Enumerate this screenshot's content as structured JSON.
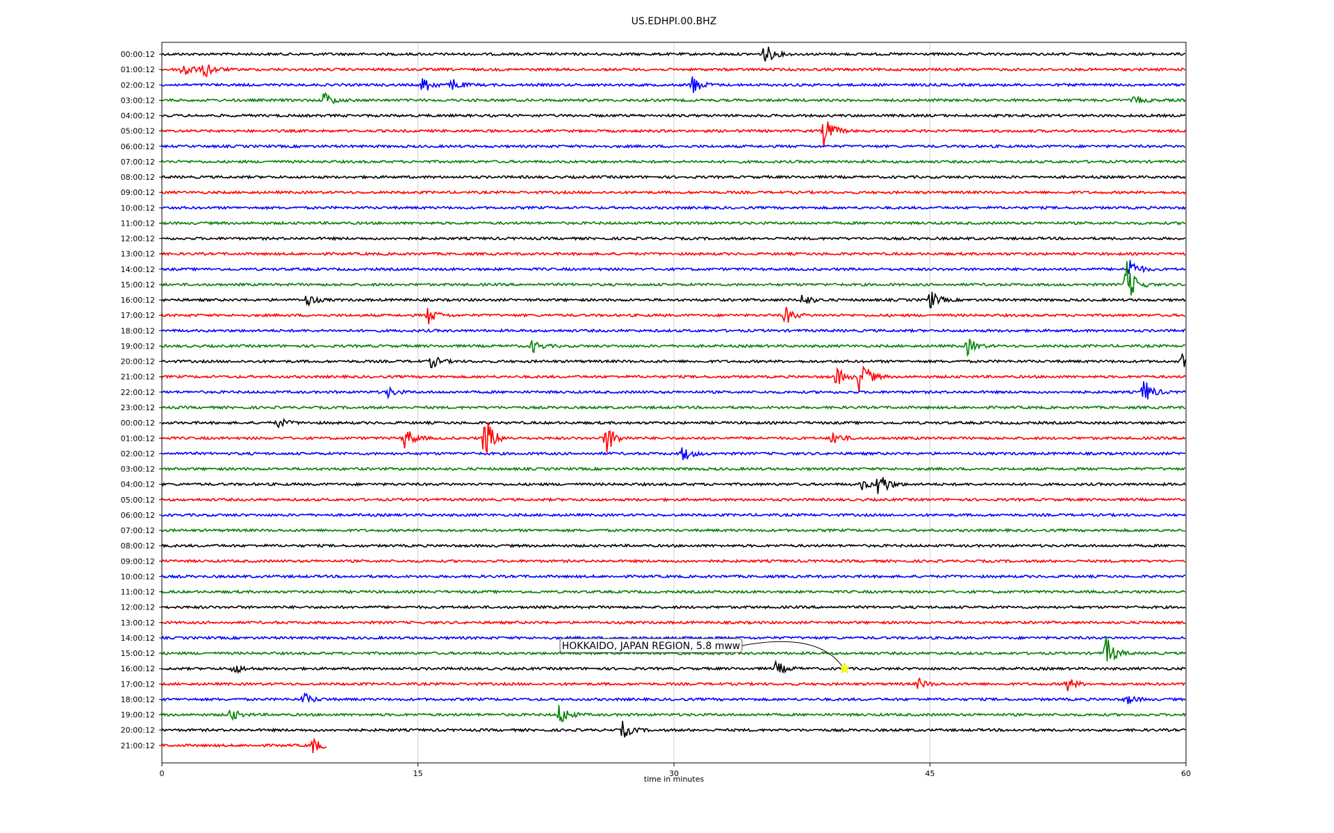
{
  "chart_data": {
    "type": "line",
    "title": "US.EDHPI.00.BHZ",
    "xlabel": "time in minutes",
    "ylabel": "",
    "xlim": [
      0,
      60
    ],
    "xticks": [
      0,
      15,
      30,
      45,
      60
    ],
    "grid": true,
    "row_colors": [
      "#000000",
      "#ff0000",
      "#0000ff",
      "#008000"
    ],
    "row_labels": [
      "00:00:12",
      "01:00:12",
      "02:00:12",
      "03:00:12",
      "04:00:12",
      "05:00:12",
      "06:00:12",
      "07:00:12",
      "08:00:12",
      "09:00:12",
      "10:00:12",
      "11:00:12",
      "12:00:12",
      "13:00:12",
      "14:00:12",
      "15:00:12",
      "16:00:12",
      "17:00:12",
      "18:00:12",
      "19:00:12",
      "20:00:12",
      "21:00:12",
      "22:00:12",
      "23:00:12",
      "00:00:12",
      "01:00:12",
      "02:00:12",
      "03:00:12",
      "04:00:12",
      "05:00:12",
      "06:00:12",
      "07:00:12",
      "08:00:12",
      "09:00:12",
      "10:00:12",
      "11:00:12",
      "12:00:12",
      "13:00:12",
      "14:00:12",
      "15:00:12",
      "16:00:12",
      "17:00:12",
      "18:00:12",
      "19:00:12",
      "20:00:12",
      "21:00:12"
    ],
    "last_row_end_minute": 9.7,
    "events": [
      {
        "row": 0,
        "minute": 35.3,
        "amp": 1.0
      },
      {
        "row": 1,
        "minute": 1.2,
        "amp": 1.0
      },
      {
        "row": 1,
        "minute": 2.5,
        "amp": 0.8
      },
      {
        "row": 2,
        "minute": 15.3,
        "amp": 0.9
      },
      {
        "row": 2,
        "minute": 17.0,
        "amp": 0.6
      },
      {
        "row": 2,
        "minute": 31.0,
        "amp": 1.1
      },
      {
        "row": 3,
        "minute": 9.5,
        "amp": 0.8
      },
      {
        "row": 3,
        "minute": 57.0,
        "amp": 0.4
      },
      {
        "row": 5,
        "minute": 38.8,
        "amp": 1.6
      },
      {
        "row": 14,
        "minute": 56.7,
        "amp": 1.0
      },
      {
        "row": 15,
        "minute": 56.5,
        "amp": 2.2
      },
      {
        "row": 16,
        "minute": 8.5,
        "amp": 0.6
      },
      {
        "row": 16,
        "minute": 37.5,
        "amp": 0.6
      },
      {
        "row": 16,
        "minute": 45.0,
        "amp": 0.9
      },
      {
        "row": 17,
        "minute": 15.6,
        "amp": 0.8
      },
      {
        "row": 17,
        "minute": 36.5,
        "amp": 0.9
      },
      {
        "row": 19,
        "minute": 21.7,
        "amp": 0.6
      },
      {
        "row": 19,
        "minute": 47.2,
        "amp": 0.8
      },
      {
        "row": 20,
        "minute": 15.8,
        "amp": 0.6
      },
      {
        "row": 20,
        "minute": 59.8,
        "amp": 0.7
      },
      {
        "row": 21,
        "minute": 40.9,
        "amp": 2.0
      },
      {
        "row": 21,
        "minute": 39.5,
        "amp": 0.9
      },
      {
        "row": 22,
        "minute": 57.5,
        "amp": 1.3
      },
      {
        "row": 22,
        "minute": 13.2,
        "amp": 0.5
      },
      {
        "row": 24,
        "minute": 6.8,
        "amp": 0.5
      },
      {
        "row": 25,
        "minute": 18.9,
        "amp": 2.4
      },
      {
        "row": 25,
        "minute": 14.2,
        "amp": 1.2
      },
      {
        "row": 25,
        "minute": 26.0,
        "amp": 1.6
      },
      {
        "row": 25,
        "minute": 39.3,
        "amp": 0.7
      },
      {
        "row": 26,
        "minute": 30.5,
        "amp": 0.8
      },
      {
        "row": 28,
        "minute": 42.0,
        "amp": 1.4
      },
      {
        "row": 28,
        "minute": 41.0,
        "amp": 0.5
      },
      {
        "row": 39,
        "minute": 55.3,
        "amp": 1.6
      },
      {
        "row": 40,
        "minute": 4.2,
        "amp": 0.5
      },
      {
        "row": 40,
        "minute": 36.0,
        "amp": 0.7
      },
      {
        "row": 41,
        "minute": 44.3,
        "amp": 0.5
      },
      {
        "row": 41,
        "minute": 53.0,
        "amp": 0.7
      },
      {
        "row": 42,
        "minute": 8.3,
        "amp": 0.6
      },
      {
        "row": 42,
        "minute": 56.5,
        "amp": 0.5
      },
      {
        "row": 43,
        "minute": 4.0,
        "amp": 0.6
      },
      {
        "row": 43,
        "minute": 23.3,
        "amp": 1.1
      },
      {
        "row": 44,
        "minute": 27.0,
        "amp": 0.8
      },
      {
        "row": 45,
        "minute": 8.8,
        "amp": 0.8
      }
    ],
    "annotation": {
      "text": "HOKKAIDO, JAPAN REGION, 5.8 mww",
      "row": 40,
      "minute": 40.0,
      "marker": "star",
      "marker_color": "#ffff00"
    }
  }
}
